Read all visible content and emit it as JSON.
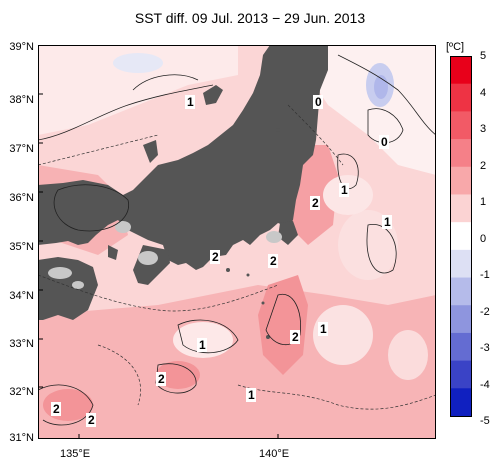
{
  "title": "SST diff. 09 Jul. 2013 − 29 Jun. 2013",
  "y_ticks": [
    "39°N",
    "38°N",
    "37°N",
    "36°N",
    "35°N",
    "34°N",
    "33°N",
    "32°N",
    "31°N"
  ],
  "x_ticks": [
    "135°E",
    "140°E"
  ],
  "colorbar": {
    "unit": "[ºC]",
    "labels": [
      "5",
      "4",
      "3",
      "2",
      "1",
      "0",
      "-1",
      "-2",
      "-3",
      "-4",
      "-5"
    ],
    "colors": [
      "#e8001a",
      "#ee3344",
      "#f25a66",
      "#f58088",
      "#f8a8aa",
      "#fbd3d3",
      "#ffffff",
      "#dde0f4",
      "#b5bbea",
      "#8e95de",
      "#646cd2",
      "#3a43c6",
      "#1020c0"
    ]
  },
  "contour_labels": [
    "1",
    "0",
    "0",
    "1",
    "2",
    "1",
    "2",
    "2",
    "2",
    "1",
    "1",
    "2",
    "2",
    "1",
    "2",
    "2"
  ],
  "colors": {
    "land": "#555555",
    "lake": "#c8c8c8",
    "sea_light": "#fbd6d6",
    "sea_mid": "#f7b4b6",
    "sea_dark": "#f39a9e"
  }
}
